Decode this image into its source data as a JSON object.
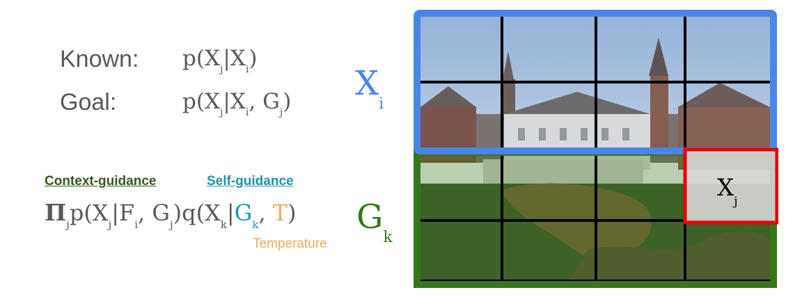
{
  "known": {
    "label": "Known:",
    "formula": {
      "p": "p(X",
      "j": "j",
      "bar": "|X",
      "i": "i",
      "end": ")"
    }
  },
  "goal": {
    "label": "Goal:",
    "formula": {
      "p": "p(X",
      "j": "j",
      "bar": "|X",
      "i": "i",
      "comma": ", G",
      "j2": "j",
      "end": ")"
    }
  },
  "guidance": {
    "context_label": "Context-guidance",
    "self_label": "Self-guidance"
  },
  "product_formula": {
    "pi": "Π",
    "sub_j": "j",
    "p": "p(X",
    "sub_j2": "j",
    "bar_f": "|F",
    "sub_i": "i",
    "comma_g": ", G",
    "sub_j3": "j",
    "q": ")q(X",
    "sub_k": "k",
    "bar": "|",
    "g": "G",
    "sub_k2": "k",
    "comma": ", ",
    "t": "T",
    "close": ")"
  },
  "temperature_label": "Temperature",
  "labels": {
    "xi": {
      "base": "X",
      "sub": "i"
    },
    "gk": {
      "base": "G",
      "sub": "k"
    },
    "xj": {
      "base": "X",
      "sub": "j"
    }
  },
  "colors": {
    "blue_region": "#4A86E8",
    "green_region": "#38761D",
    "highlight": "#E60000",
    "context_guidance": "#385723",
    "self_guidance": "#1F96A3",
    "temperature": "#F4A856"
  }
}
